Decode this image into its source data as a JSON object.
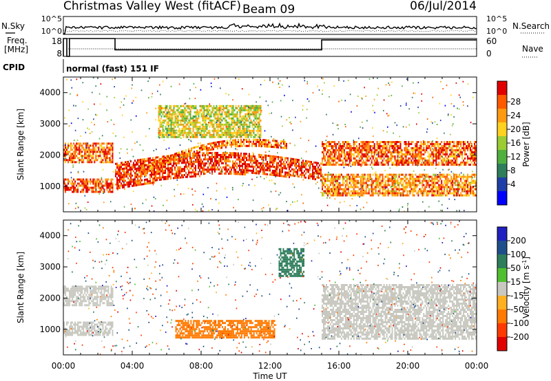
{
  "header": {
    "station": "Christmas Valley West (fitACF)",
    "beam": "Beam 09",
    "date": "06/Jul/2014"
  },
  "panels": {
    "nsky": {
      "label": "N.Sky",
      "left_ticks": [
        "10^5",
        "10^0"
      ],
      "right_ticks": [
        "10^5",
        "10^0"
      ],
      "right_label": "N.Search"
    },
    "freq": {
      "label_line1": "Freq.",
      "label_line2": "[MHz]",
      "left_ticks": [
        "18",
        "8"
      ],
      "right_ticks": [
        "60",
        "0"
      ],
      "right_label": "Nave"
    },
    "cpid": {
      "label": "CPID",
      "text": "normal (fast) 151 IF"
    }
  },
  "chart_data": [
    {
      "type": "heatmap",
      "name": "power",
      "ylabel": "Slant Range [km]",
      "xlabel": "",
      "xlim_hours": [
        0,
        24
      ],
      "ylim": [
        180,
        4500
      ],
      "yticks": [
        1000,
        2000,
        3000,
        4000
      ],
      "colorbar": {
        "label": "Power [dB]",
        "ticks": [
          4,
          8,
          12,
          16,
          20,
          24,
          28
        ],
        "colors": [
          "#0000ff",
          "#1f3fa8",
          "#2e7d5b",
          "#4fb03f",
          "#9bcc33",
          "#ffd21f",
          "#ff9a10",
          "#ff5a00",
          "#e00000"
        ]
      },
      "features": [
        {
          "label": "lower band 00-03 UT",
          "t": [
            0.0,
            2.9
          ],
          "range": [
            850,
            1250
          ],
          "level": 26
        },
        {
          "label": "upper band 00-03 UT",
          "t": [
            0.0,
            2.9
          ],
          "range": [
            1800,
            2400
          ],
          "level": 25
        },
        {
          "label": "descending arc",
          "t": [
            3.0,
            15.0
          ],
          "range_start": [
            900,
            1500
          ],
          "range_end": [
            1200,
            1500
          ],
          "level": 27
        },
        {
          "label": "rising arc",
          "t": [
            5.0,
            13.0
          ],
          "range_start": [
            1500,
            1500
          ],
          "range_end": [
            2200,
            2200
          ],
          "level": 24
        },
        {
          "label": "upper arc",
          "t": [
            5.5,
            11.5
          ],
          "range": [
            2600,
            3600
          ],
          "level": 18
        },
        {
          "label": "late upper band",
          "t": [
            15.0,
            24.0
          ],
          "range": [
            1700,
            2450
          ],
          "level": 25
        },
        {
          "label": "late lower band",
          "t": [
            15.0,
            24.0
          ],
          "range": [
            700,
            1400
          ],
          "level": 23
        }
      ]
    },
    {
      "type": "heatmap",
      "name": "velocity",
      "ylabel": "Slant Range [km]",
      "xlabel": "Time UT",
      "xlim_hours": [
        0,
        24
      ],
      "ylim": [
        180,
        4500
      ],
      "yticks": [
        1000,
        2000,
        3000,
        4000
      ],
      "xticks": [
        "00:00",
        "04:00",
        "08:00",
        "12:00",
        "16:00",
        "20:00",
        "00:00"
      ],
      "colorbar": {
        "label": "Velocity [m s^-1]",
        "ticks": [
          200,
          100,
          50,
          15,
          -15,
          -50,
          -100,
          -200
        ],
        "colors": [
          "#2020c0",
          "#1f4f8a",
          "#2e7d5b",
          "#50c030",
          "#c8c8c0",
          "#ffb020",
          "#ff7a00",
          "#ff3a00",
          "#e00000"
        ]
      },
      "features": [
        {
          "label": "ground scatter band 00-03 UT",
          "t": [
            0.0,
            2.9
          ],
          "range": [
            850,
            1250
          ],
          "velocity": 0
        },
        {
          "label": "ground scatter upper 00-03 UT",
          "t": [
            0.0,
            2.9
          ],
          "range": [
            1800,
            2400
          ],
          "velocity": 0
        },
        {
          "label": "negative velocity arc",
          "t": [
            6.5,
            12.3
          ],
          "range": [
            750,
            1300
          ],
          "velocity": -60
        },
        {
          "label": "positive velocity streak",
          "t": [
            12.5,
            14.0
          ],
          "range": [
            2700,
            3600
          ],
          "velocity": 60
        },
        {
          "label": "late ground scatter",
          "t": [
            15.0,
            24.0
          ],
          "range": [
            700,
            2450
          ],
          "velocity": 0
        }
      ]
    }
  ]
}
